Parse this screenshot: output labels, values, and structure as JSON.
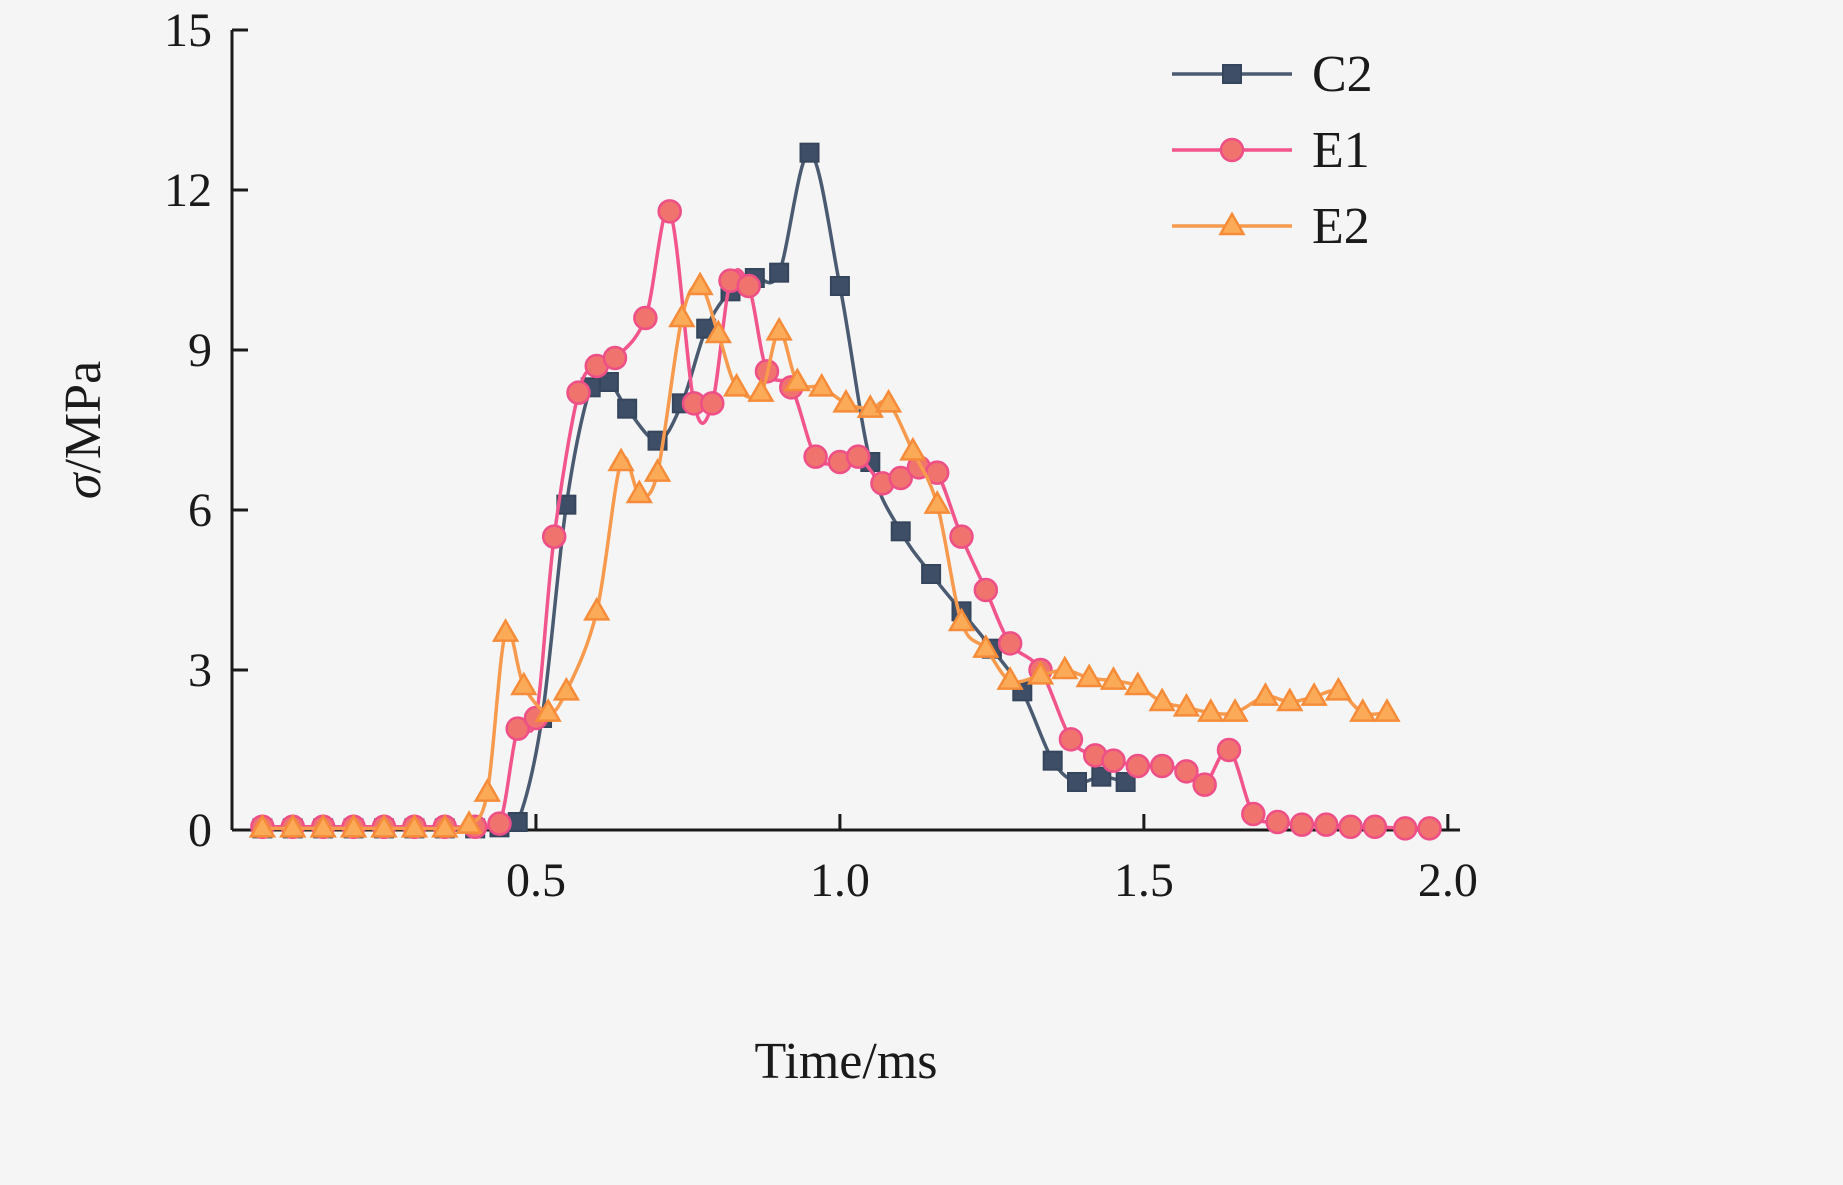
{
  "figure": {
    "background": "#f5f5f6",
    "axis_color": "#1a1a1a"
  },
  "chart_data": {
    "type": "line",
    "title": "",
    "xlabel": "Time/ms",
    "ylabel": "σ/MPa",
    "xlim": [
      0,
      2.02
    ],
    "ylim": [
      0,
      15
    ],
    "grid": false,
    "xticks": {
      "values": [
        0.5,
        1.0,
        1.5,
        2.0
      ],
      "labels": [
        "0.5",
        "1.0",
        "1.5",
        "2.0"
      ]
    },
    "yticks": {
      "values": [
        0,
        3,
        6,
        9,
        12,
        15
      ],
      "labels": [
        "0",
        "3",
        "6",
        "9",
        "12",
        "15"
      ]
    },
    "legend": {
      "position": "top-right",
      "entries": [
        "C2",
        "E1",
        "E2"
      ]
    },
    "series": [
      {
        "name": "C2",
        "line_color": "#4a5a70",
        "marker": "square",
        "marker_fill": "#3d4e66",
        "marker_stroke": "#35465c",
        "points": [
          [
            0.05,
            0.03
          ],
          [
            0.1,
            0.03
          ],
          [
            0.15,
            0.03
          ],
          [
            0.2,
            0.03
          ],
          [
            0.25,
            0.03
          ],
          [
            0.3,
            0.03
          ],
          [
            0.35,
            0.03
          ],
          [
            0.4,
            0.03
          ],
          [
            0.44,
            0.05
          ],
          [
            0.47,
            0.15
          ],
          [
            0.51,
            2.1
          ],
          [
            0.55,
            6.1
          ],
          [
            0.59,
            8.3
          ],
          [
            0.62,
            8.4
          ],
          [
            0.65,
            7.9
          ],
          [
            0.7,
            7.3
          ],
          [
            0.74,
            8.0
          ],
          [
            0.78,
            9.4
          ],
          [
            0.82,
            10.1
          ],
          [
            0.86,
            10.35
          ],
          [
            0.9,
            10.45
          ],
          [
            0.95,
            12.7
          ],
          [
            1.0,
            10.2
          ],
          [
            1.05,
            6.9
          ],
          [
            1.1,
            5.6
          ],
          [
            1.15,
            4.8
          ],
          [
            1.2,
            4.1
          ],
          [
            1.25,
            3.4
          ],
          [
            1.3,
            2.6
          ],
          [
            1.35,
            1.3
          ],
          [
            1.39,
            0.9
          ],
          [
            1.43,
            1.0
          ],
          [
            1.47,
            0.9
          ]
        ]
      },
      {
        "name": "E1",
        "line_color": "#f2548c",
        "marker": "circle",
        "marker_fill": "#f0736e",
        "marker_stroke": "#ee4f87",
        "points": [
          [
            0.05,
            0.06
          ],
          [
            0.1,
            0.06
          ],
          [
            0.15,
            0.06
          ],
          [
            0.2,
            0.06
          ],
          [
            0.25,
            0.06
          ],
          [
            0.3,
            0.06
          ],
          [
            0.35,
            0.06
          ],
          [
            0.4,
            0.06
          ],
          [
            0.44,
            0.12
          ],
          [
            0.47,
            1.9
          ],
          [
            0.5,
            2.1
          ],
          [
            0.53,
            5.5
          ],
          [
            0.57,
            8.2
          ],
          [
            0.6,
            8.7
          ],
          [
            0.63,
            8.85
          ],
          [
            0.68,
            9.6
          ],
          [
            0.72,
            11.6
          ],
          [
            0.76,
            8.0
          ],
          [
            0.79,
            8.0
          ],
          [
            0.82,
            10.3
          ],
          [
            0.85,
            10.2
          ],
          [
            0.88,
            8.6
          ],
          [
            0.92,
            8.3
          ],
          [
            0.96,
            7.0
          ],
          [
            1.0,
            6.9
          ],
          [
            1.03,
            7.0
          ],
          [
            1.07,
            6.5
          ],
          [
            1.1,
            6.6
          ],
          [
            1.13,
            6.8
          ],
          [
            1.16,
            6.7
          ],
          [
            1.2,
            5.5
          ],
          [
            1.24,
            4.5
          ],
          [
            1.28,
            3.5
          ],
          [
            1.33,
            3.0
          ],
          [
            1.38,
            1.7
          ],
          [
            1.42,
            1.4
          ],
          [
            1.45,
            1.3
          ],
          [
            1.49,
            1.2
          ],
          [
            1.53,
            1.2
          ],
          [
            1.57,
            1.1
          ],
          [
            1.6,
            0.85
          ],
          [
            1.64,
            1.5
          ],
          [
            1.68,
            0.3
          ],
          [
            1.72,
            0.15
          ],
          [
            1.76,
            0.1
          ],
          [
            1.8,
            0.1
          ],
          [
            1.84,
            0.06
          ],
          [
            1.88,
            0.06
          ],
          [
            1.93,
            0.03
          ],
          [
            1.97,
            0.03
          ]
        ]
      },
      {
        "name": "E2",
        "line_color": "#f79a4d",
        "marker": "triangle",
        "marker_fill": "#fbab57",
        "marker_stroke": "#f68c3a",
        "points": [
          [
            0.05,
            0.03
          ],
          [
            0.1,
            0.03
          ],
          [
            0.15,
            0.03
          ],
          [
            0.2,
            0.03
          ],
          [
            0.25,
            0.03
          ],
          [
            0.3,
            0.03
          ],
          [
            0.35,
            0.03
          ],
          [
            0.39,
            0.1
          ],
          [
            0.42,
            0.7
          ],
          [
            0.45,
            3.7
          ],
          [
            0.48,
            2.7
          ],
          [
            0.52,
            2.2
          ],
          [
            0.55,
            2.6
          ],
          [
            0.6,
            4.1
          ],
          [
            0.64,
            6.9
          ],
          [
            0.67,
            6.3
          ],
          [
            0.7,
            6.7
          ],
          [
            0.74,
            9.6
          ],
          [
            0.77,
            10.2
          ],
          [
            0.8,
            9.3
          ],
          [
            0.83,
            8.3
          ],
          [
            0.87,
            8.2
          ],
          [
            0.9,
            9.35
          ],
          [
            0.93,
            8.4
          ],
          [
            0.97,
            8.3
          ],
          [
            1.01,
            8.0
          ],
          [
            1.05,
            7.9
          ],
          [
            1.08,
            8.0
          ],
          [
            1.12,
            7.1
          ],
          [
            1.16,
            6.1
          ],
          [
            1.2,
            3.9
          ],
          [
            1.24,
            3.4
          ],
          [
            1.28,
            2.8
          ],
          [
            1.33,
            2.9
          ],
          [
            1.37,
            3.0
          ],
          [
            1.41,
            2.85
          ],
          [
            1.45,
            2.8
          ],
          [
            1.49,
            2.7
          ],
          [
            1.53,
            2.4
          ],
          [
            1.57,
            2.3
          ],
          [
            1.61,
            2.2
          ],
          [
            1.65,
            2.2
          ],
          [
            1.7,
            2.5
          ],
          [
            1.74,
            2.4
          ],
          [
            1.78,
            2.5
          ],
          [
            1.82,
            2.6
          ],
          [
            1.86,
            2.2
          ],
          [
            1.9,
            2.2
          ]
        ]
      }
    ]
  }
}
